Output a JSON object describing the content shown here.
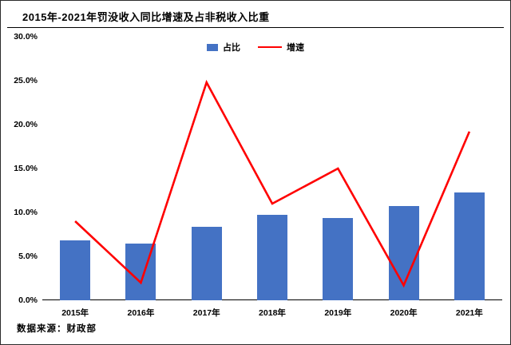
{
  "title": "2015年-2021年罚没收入同比增速及占非税收入比重",
  "footer": "数据来源：财政部",
  "legend": {
    "bar_label": "占比",
    "line_label": "增速"
  },
  "colors": {
    "bar": "#4472C4",
    "line": "#FF0000",
    "axis": "#000000"
  },
  "chart_data": {
    "type": "bar",
    "subtype": "bar+line combo",
    "title": "2015年-2021年罚没收入同比增速及占非税收入比重",
    "categories": [
      "2015年",
      "2016年",
      "2017年",
      "2018年",
      "2019年",
      "2020年",
      "2021年"
    ],
    "series": [
      {
        "name": "占比",
        "type": "bar",
        "color": "#4472C4",
        "values": [
          6.8,
          6.5,
          8.4,
          9.7,
          9.4,
          10.7,
          12.3
        ]
      },
      {
        "name": "增速",
        "type": "line",
        "color": "#FF0000",
        "values": [
          9.0,
          2.0,
          24.8,
          11.0,
          15.0,
          1.7,
          19.2
        ]
      }
    ],
    "xlabel": "",
    "ylabel": "",
    "ylim": [
      0,
      30
    ],
    "y_tick_step": 5,
    "y_ticks": [
      "0.0%",
      "5.0%",
      "10.0%",
      "15.0%",
      "20.0%",
      "25.0%",
      "30.0%"
    ],
    "grid": false,
    "legend_position": "top-center",
    "source_note": "数据来源：财政部"
  }
}
